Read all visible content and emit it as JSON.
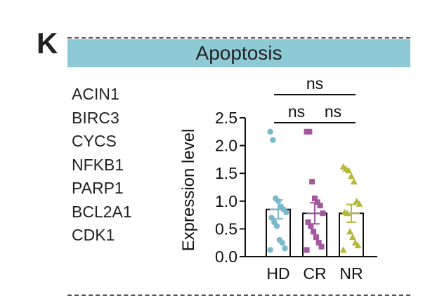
{
  "panel_label": "K",
  "banner": {
    "title": "Apoptosis",
    "color": "#8ecad6"
  },
  "genes": [
    "ACIN1",
    "BIRC3",
    "CYCS",
    "NFKB1",
    "PARP1",
    "BCL2A1",
    "CDK1"
  ],
  "chart_data": {
    "type": "bar",
    "ylabel": "Expression level",
    "xlabel": "",
    "ylim": [
      0,
      2.5
    ],
    "yticks": [
      0.0,
      0.5,
      1.0,
      1.5,
      2.0,
      2.5
    ],
    "ytick_labels": [
      "0.0",
      "0.5",
      "1.0",
      "1.5",
      "2.0",
      "2.5"
    ],
    "categories": [
      "HD",
      "CR",
      "NR"
    ],
    "means": [
      0.85,
      0.78,
      0.78
    ],
    "sem": [
      0.17,
      0.19,
      0.16
    ],
    "colors": [
      "#7ab8cc",
      "#a2579e",
      "#b5b83a"
    ],
    "marker_shapes": [
      "circle",
      "square",
      "triangle"
    ],
    "points": [
      [
        0.12,
        0.15,
        0.25,
        0.3,
        0.55,
        0.62,
        0.7,
        0.8,
        0.85,
        0.9,
        1.0,
        1.05,
        2.1,
        2.25
      ],
      [
        0.12,
        0.18,
        0.25,
        0.35,
        0.45,
        0.55,
        0.62,
        0.78,
        0.92,
        0.98,
        1.05,
        1.35,
        2.25,
        2.25
      ],
      [
        0.12,
        0.2,
        0.25,
        0.35,
        0.45,
        0.78,
        0.8,
        0.95,
        1.0,
        1.35,
        1.45,
        1.55,
        1.58,
        1.62
      ]
    ],
    "significance": [
      {
        "from": 0,
        "to": 2,
        "label": "ns"
      },
      {
        "from": 0,
        "to": 1,
        "label": "ns"
      },
      {
        "from": 1,
        "to": 2,
        "label": "ns"
      }
    ]
  }
}
